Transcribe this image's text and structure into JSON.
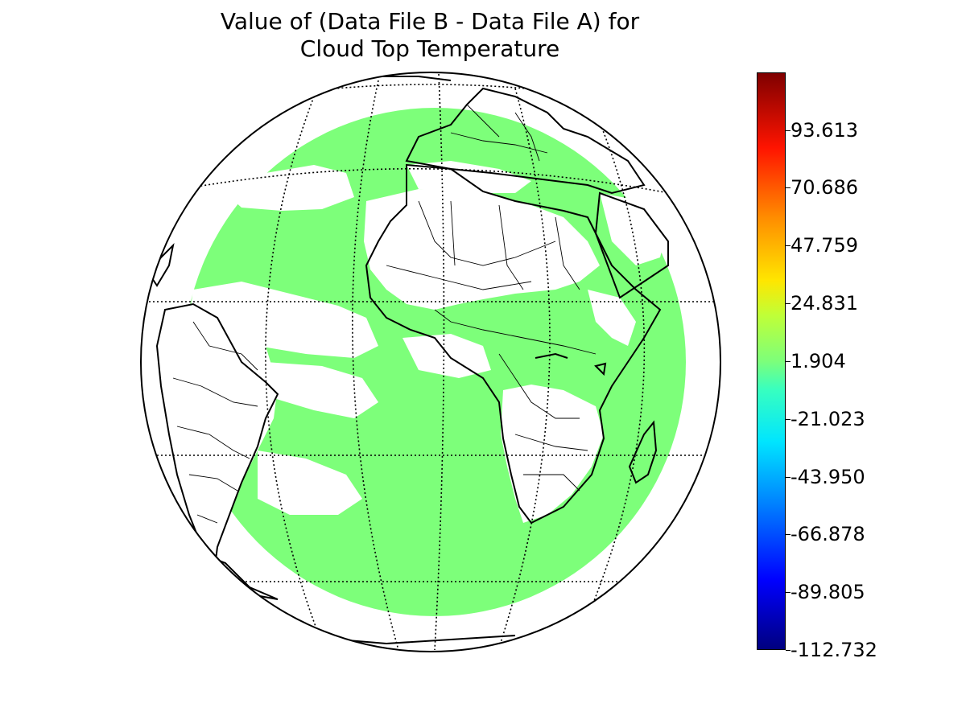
{
  "title": {
    "line1": "Value of (Data File B - Data File A) for",
    "line2": "Cloud Top Temperature"
  },
  "map": {
    "projection": "orthographic",
    "data_color": "#7dff7a",
    "coastline_color": "#000000",
    "graticule": "dotted"
  },
  "colorbar": {
    "colormap": "jet",
    "min": -112.732,
    "max": 116.5,
    "ticks": [
      "93.613",
      "70.686",
      "47.759",
      "24.831",
      "1.904",
      "-21.023",
      "-43.950",
      "-66.878",
      "-89.805",
      "-112.732"
    ],
    "tick_values": [
      93.613,
      70.686,
      47.759,
      24.831,
      1.904,
      -21.023,
      -43.95,
      -66.878,
      -89.805,
      -112.732
    ]
  }
}
